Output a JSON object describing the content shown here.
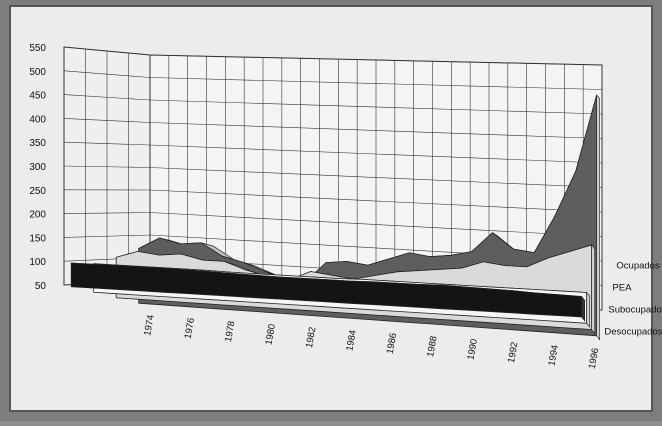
{
  "chart_data": {
    "type": "area",
    "subtype": "3d-ribbon",
    "title": "",
    "xlabel": "",
    "ylabel": "",
    "ylim": [
      50,
      550
    ],
    "y_ticks": [
      "50",
      "100",
      "150",
      "200",
      "250",
      "300",
      "350",
      "400",
      "450",
      "500",
      "550"
    ],
    "x_tick_labels": [
      "1974",
      "1976",
      "1978",
      "1980",
      "1982",
      "1984",
      "1986",
      "1988",
      "1990",
      "1992",
      "1994",
      "1996"
    ],
    "x": [
      1974,
      1975,
      1976,
      1977,
      1978,
      1979,
      1980,
      1981,
      1982,
      1983,
      1984,
      1985,
      1986,
      1987,
      1988,
      1989,
      1990,
      1991,
      1992,
      1993,
      1994,
      1995,
      1996
    ],
    "grid": true,
    "series": [
      {
        "name": "Ocupados",
        "color": "#141414",
        "values": [
          100,
          100,
          100,
          100,
          100,
          99,
          98,
          97,
          96,
          95,
          95,
          95,
          95,
          96,
          96,
          96,
          97,
          96,
          95,
          94,
          92,
          91,
          90
        ]
      },
      {
        "name": "PEA",
        "color": "#f6f6f6",
        "values": [
          110,
          110,
          110,
          110,
          110,
          110,
          109,
          109,
          109,
          109,
          109,
          109,
          110,
          110,
          110,
          110,
          110,
          110,
          110,
          110,
          110,
          110,
          110
        ]
      },
      {
        "name": "Subocupados",
        "color": "#dadada",
        "values": [
          135,
          150,
          145,
          150,
          140,
          140,
          125,
          115,
          110,
          130,
          125,
          120,
          130,
          140,
          145,
          150,
          155,
          170,
          165,
          165,
          185,
          200,
          215
        ]
      },
      {
        "name": "Desocupados",
        "color": "#5e5e5e",
        "values": [
          165,
          190,
          180,
          185,
          160,
          150,
          135,
          120,
          118,
          160,
          165,
          160,
          175,
          190,
          185,
          190,
          200,
          240,
          210,
          205,
          280,
          370,
          520
        ]
      }
    ]
  }
}
